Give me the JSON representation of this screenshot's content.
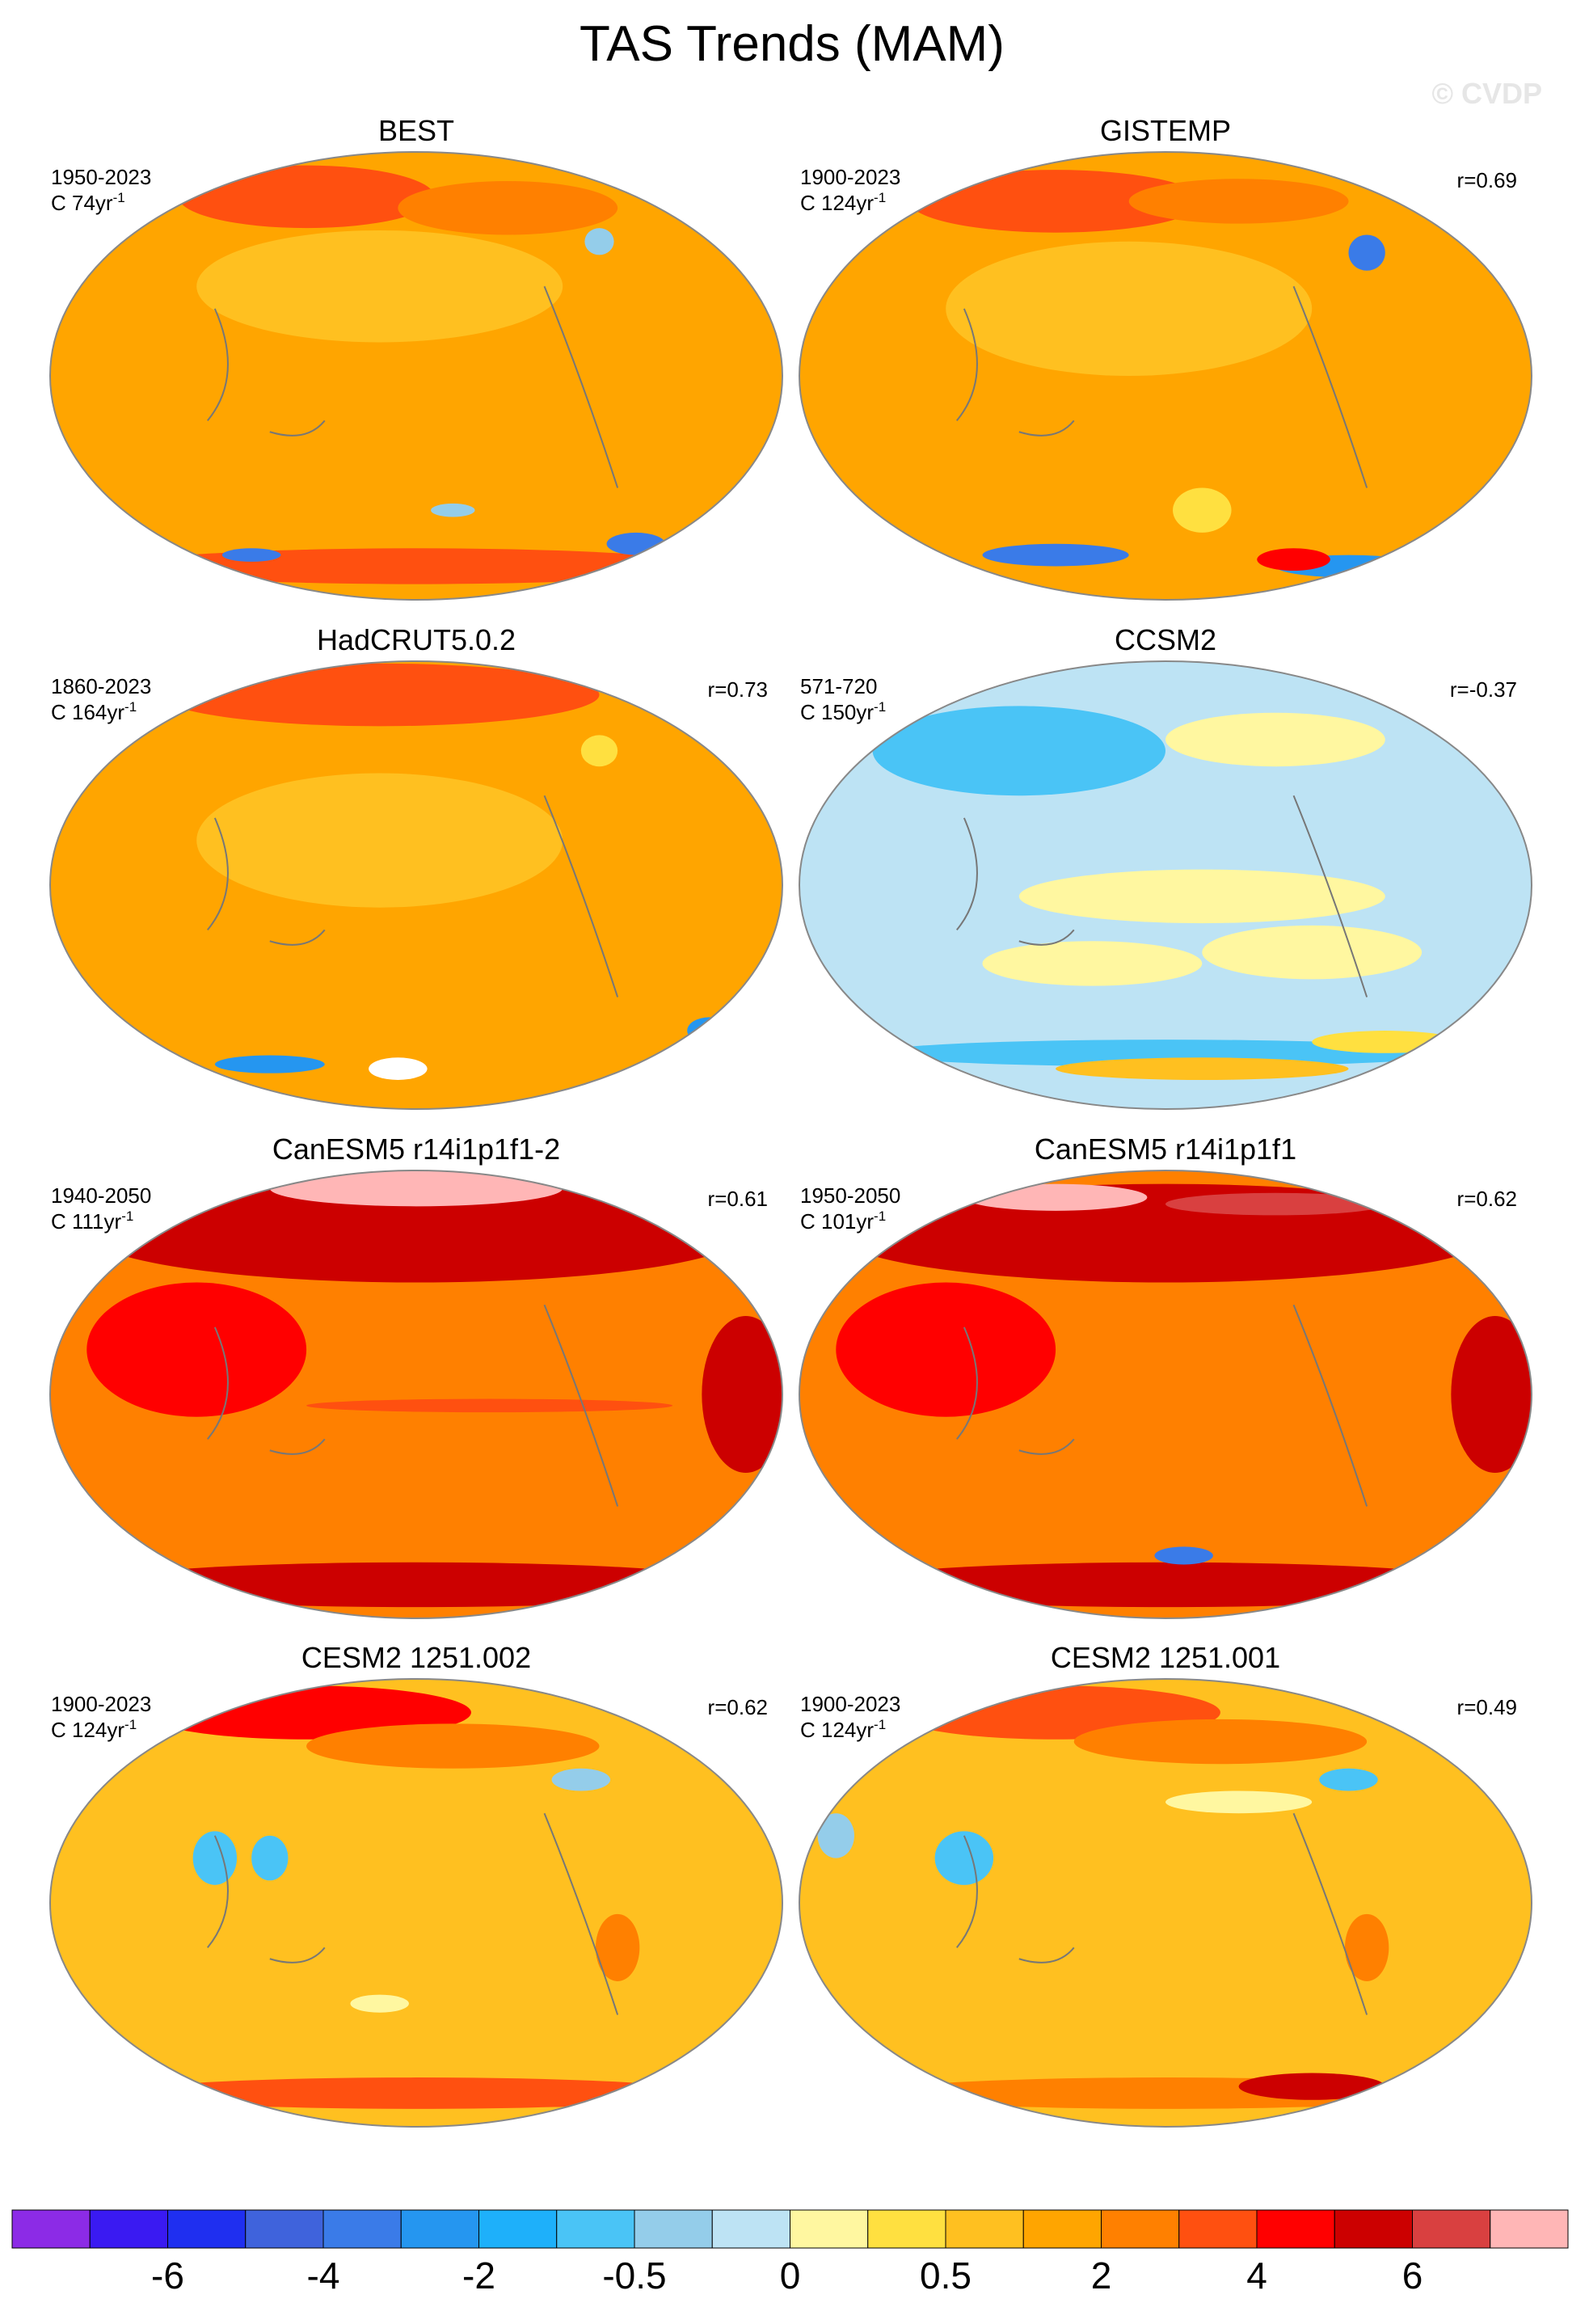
{
  "title": "TAS Trends (MAM)",
  "watermark": "© CVDP",
  "panels": [
    {
      "title": "BEST",
      "period": "1950-2023",
      "trend": "C 74yr",
      "trend_exp": "-1"
    },
    {
      "title": "GISTEMP",
      "period": "1900-2023",
      "trend": "C 124yr",
      "trend_exp": "-1",
      "r": "r=0.69"
    },
    {
      "title": "HadCRUT5.0.2",
      "period": "1860-2023",
      "trend": "C 164yr",
      "trend_exp": "-1",
      "r": "r=0.73"
    },
    {
      "title": "CCSM2",
      "period": "571-720",
      "trend": "C 150yr",
      "trend_exp": "-1",
      "r": "r=-0.37"
    },
    {
      "title": "CanESM5 r14i1p1f1-2",
      "period": "1940-2050",
      "trend": "C 111yr",
      "trend_exp": "-1",
      "r": "r=0.61"
    },
    {
      "title": "CanESM5 r14i1p1f1",
      "period": "1950-2050",
      "trend": "C 101yr",
      "trend_exp": "-1",
      "r": "r=0.62"
    },
    {
      "title": "CESM2 1251.002",
      "period": "1900-2023",
      "trend": "C 124yr",
      "trend_exp": "-1",
      "r": "r=0.62"
    },
    {
      "title": "CESM2 1251.001",
      "period": "1900-2023",
      "trend": "C 124yr",
      "trend_exp": "-1",
      "r": "r=0.49"
    }
  ],
  "colorbar": {
    "colors": [
      "#8c2be6",
      "#3a1af2",
      "#1f2ff0",
      "#3f63dc",
      "#3a7be8",
      "#2596f0",
      "#1eb0fa",
      "#4ac4f6",
      "#94cdea",
      "#bde3f4",
      "#fff7a0",
      "#ffe040",
      "#ffc020",
      "#ffa500",
      "#ff8000",
      "#ff5010",
      "#ff0000",
      "#cc0000",
      "#d94040",
      "#ffb6b6"
    ],
    "labels": [
      -6,
      -4,
      -2,
      -0.5,
      0,
      0.5,
      2,
      4,
      6
    ]
  }
}
